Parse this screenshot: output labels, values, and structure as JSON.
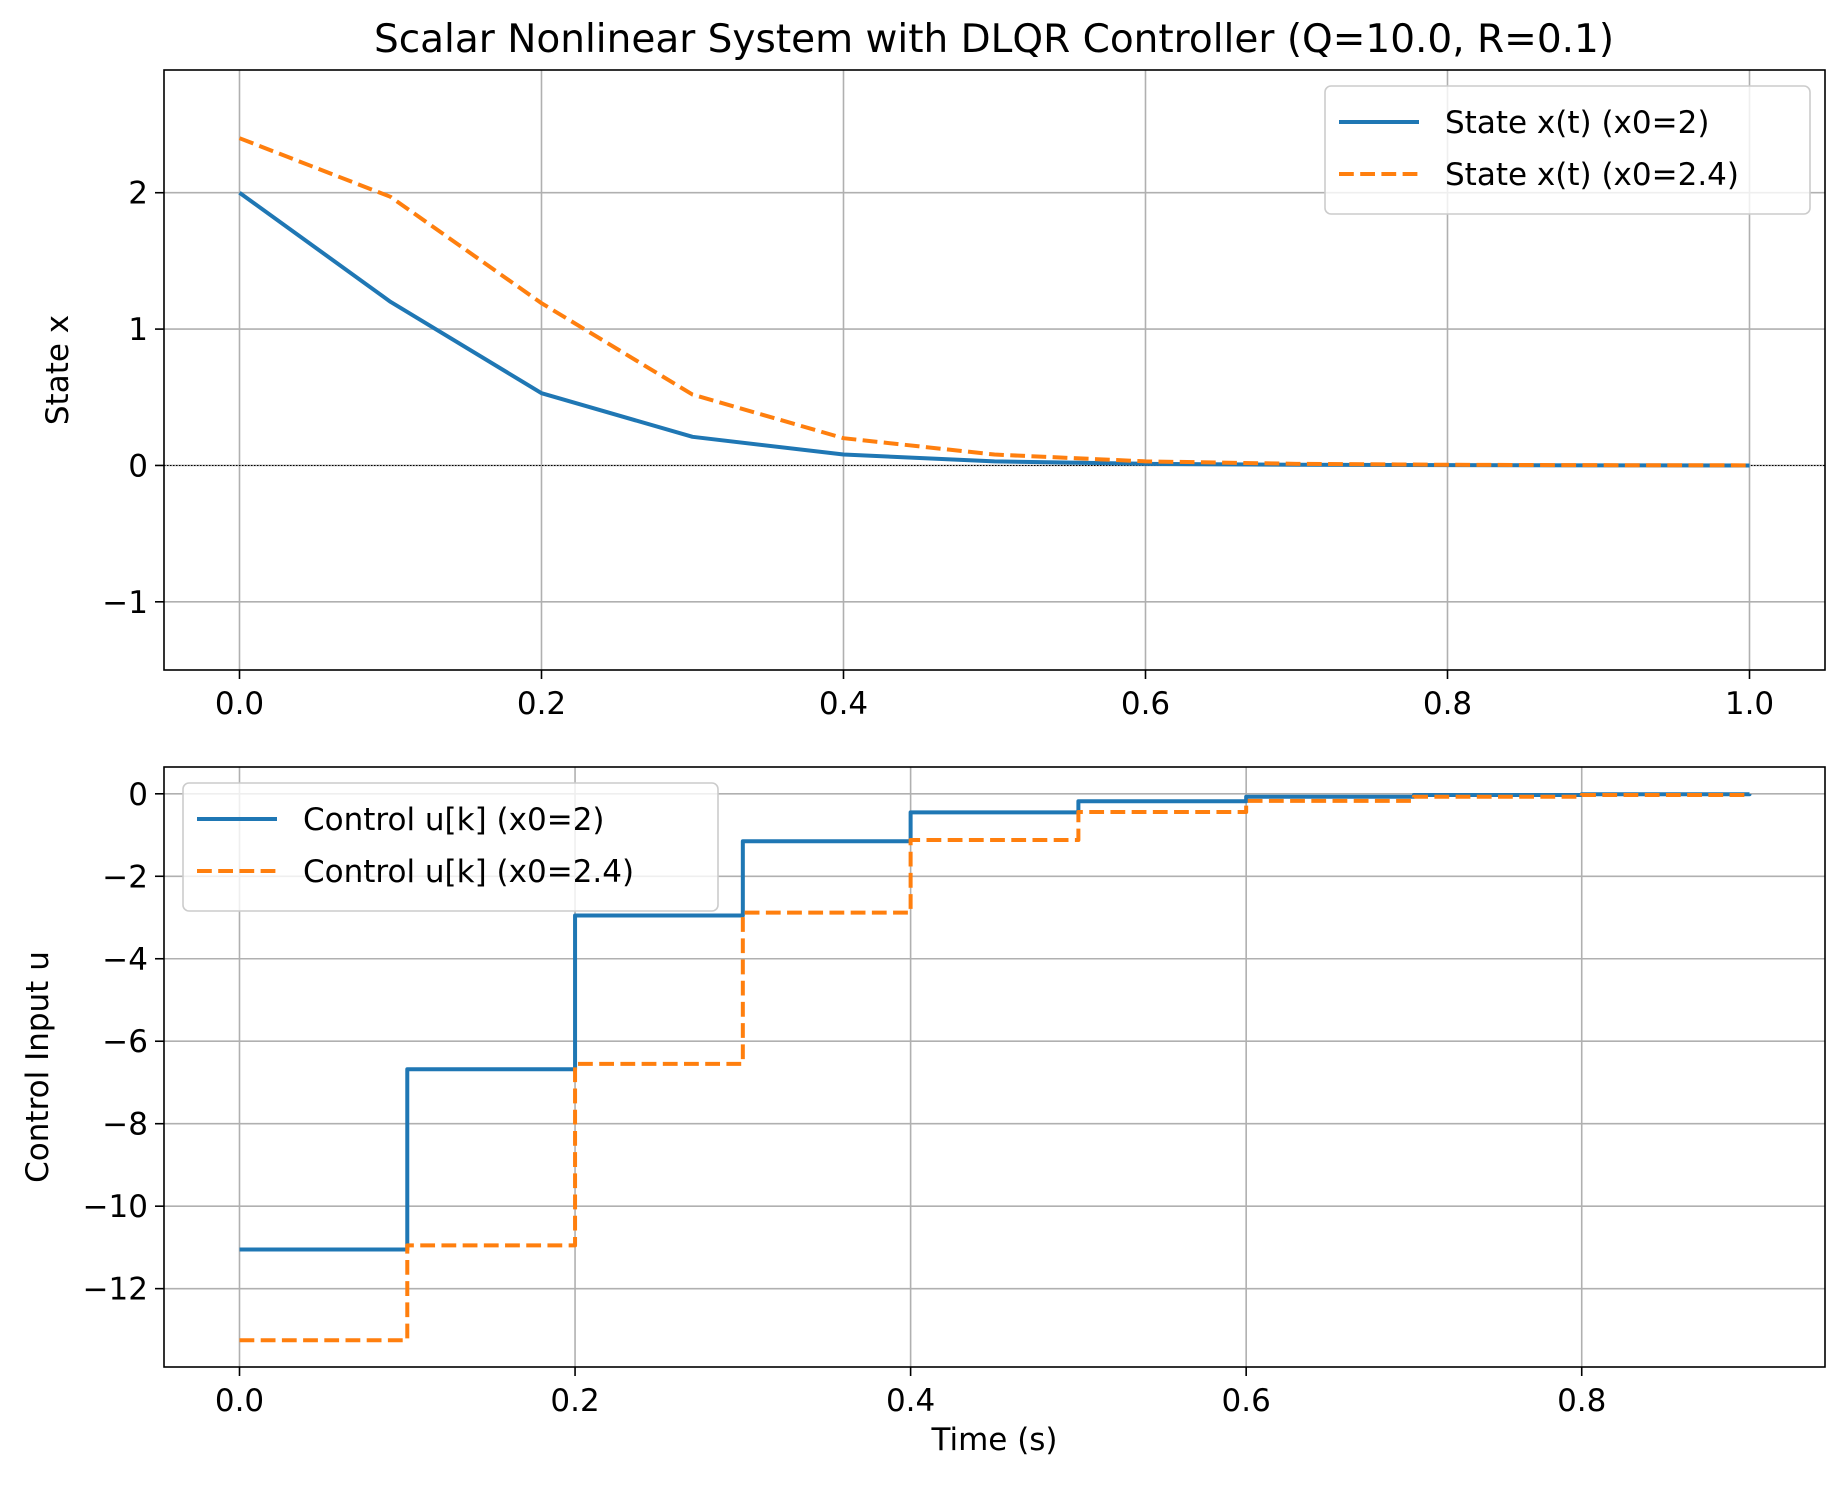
{
  "chart_data": [
    {
      "type": "line",
      "title": "Scalar Nonlinear System with DLQR Controller (Q=10.0, R=0.1)",
      "xlabel": "",
      "ylabel": "State x",
      "xlim": [
        -0.05,
        1.05
      ],
      "ylim": [
        -1.5,
        2.9
      ],
      "xticks": [
        0.0,
        0.2,
        0.4,
        0.6,
        0.8,
        1.0
      ],
      "xtick_labels": [
        "0.0",
        "0.2",
        "0.4",
        "0.6",
        "0.8",
        "1.0"
      ],
      "yticks": [
        -1,
        0,
        1,
        2
      ],
      "ytick_labels": [
        "−1",
        "0",
        "1",
        "2"
      ],
      "grid": true,
      "zero_line": true,
      "legend_position": "upper right",
      "x": [
        0.0,
        0.1,
        0.2,
        0.3,
        0.4,
        0.5,
        0.6,
        0.7,
        0.8,
        0.9,
        1.0
      ],
      "series": [
        {
          "name": "State x(t) (x0=2)",
          "color": "#1f77b4",
          "dash": "solid",
          "values": [
            2.0,
            1.2,
            0.53,
            0.21,
            0.08,
            0.03,
            0.012,
            0.005,
            0.002,
            0.001,
            0.0
          ]
        },
        {
          "name": "State x(t) (x0=2.4)",
          "color": "#ff7f0e",
          "dash": "dashed",
          "values": [
            2.4,
            1.97,
            1.19,
            0.52,
            0.2,
            0.08,
            0.03,
            0.012,
            0.005,
            0.002,
            0.001
          ]
        }
      ]
    },
    {
      "type": "line",
      "step": "post",
      "title": "",
      "xlabel": "Time (s)",
      "ylabel": "Control Input u",
      "xlim": [
        -0.045,
        0.945
      ],
      "ylim": [
        -13.9,
        0.65
      ],
      "xticks": [
        0.0,
        0.2,
        0.4,
        0.6,
        0.8
      ],
      "xtick_labels": [
        "0.0",
        "0.2",
        "0.4",
        "0.6",
        "0.8"
      ],
      "yticks": [
        -12,
        -10,
        -8,
        -6,
        -4,
        -2,
        0
      ],
      "ytick_labels": [
        "−12",
        "−10",
        "−8",
        "−6",
        "−4",
        "−2",
        "0"
      ],
      "grid": true,
      "legend_position": "upper left",
      "x": [
        0.0,
        0.1,
        0.2,
        0.3,
        0.4,
        0.5,
        0.6,
        0.7,
        0.8,
        0.9
      ],
      "series": [
        {
          "name": "Control u[k] (x0=2)",
          "color": "#1f77b4",
          "dash": "solid",
          "values": [
            -11.05,
            -6.68,
            -2.95,
            -1.15,
            -0.45,
            -0.18,
            -0.07,
            -0.03,
            -0.01,
            -0.005
          ]
        },
        {
          "name": "Control u[k] (x0=2.4)",
          "color": "#ff7f0e",
          "dash": "dashed",
          "values": [
            -13.25,
            -10.95,
            -6.55,
            -2.88,
            -1.12,
            -0.44,
            -0.17,
            -0.07,
            -0.03,
            -0.01
          ]
        }
      ]
    }
  ]
}
